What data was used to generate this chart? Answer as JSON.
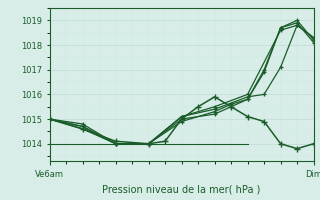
{
  "title": "Pression niveau de la mer( hPa )",
  "xtick_left": "Ve6am",
  "xtick_right": "Dim",
  "ylabel_ticks": [
    1014,
    1015,
    1016,
    1017,
    1018,
    1019
  ],
  "ylim": [
    1013.3,
    1019.5
  ],
  "xlim": [
    0,
    48
  ],
  "bg_color": "#d8ede8",
  "grid_color_major": "#c0ddd4",
  "grid_color_minor": "#cce8e0",
  "line_color": "#1a5c2a",
  "line1": {
    "x": [
      0,
      6,
      12,
      18,
      24,
      30,
      36,
      39,
      42,
      45,
      48
    ],
    "y": [
      1015.0,
      1014.8,
      1014.0,
      1014.0,
      1015.1,
      1015.4,
      1015.9,
      1016.0,
      1017.1,
      1018.8,
      1018.3
    ]
  },
  "line2": {
    "x": [
      0,
      6,
      12,
      18,
      24,
      30,
      33,
      36,
      39,
      42,
      45,
      48
    ],
    "y": [
      1015.0,
      1014.7,
      1014.0,
      1014.0,
      1014.9,
      1015.3,
      1015.6,
      1015.8,
      1016.9,
      1018.7,
      1018.9,
      1018.1
    ]
  },
  "line3": {
    "x": [
      0,
      6,
      12,
      18,
      24,
      30,
      33,
      36,
      39,
      42,
      45,
      48
    ],
    "y": [
      1015.0,
      1014.6,
      1014.0,
      1014.0,
      1015.0,
      1015.2,
      1015.5,
      1015.8,
      1017.0,
      1018.7,
      1019.0,
      1018.2
    ]
  },
  "line4": {
    "x": [
      0,
      6,
      12,
      18,
      24,
      30,
      36,
      42,
      45,
      48
    ],
    "y": [
      1015.0,
      1014.7,
      1014.0,
      1014.0,
      1015.1,
      1015.5,
      1016.0,
      1018.6,
      1018.8,
      1018.3
    ]
  },
  "line5": {
    "x": [
      0,
      6,
      12,
      18,
      21,
      24,
      27,
      30,
      33,
      36,
      39,
      42,
      45,
      48
    ],
    "y": [
      1015.0,
      1014.6,
      1014.1,
      1014.0,
      1014.1,
      1015.0,
      1015.5,
      1015.9,
      1015.5,
      1015.1,
      1014.9,
      1014.0,
      1013.8,
      1014.0
    ]
  },
  "straight_line": {
    "x": [
      0,
      36
    ],
    "y": [
      1014.0,
      1014.0
    ]
  }
}
